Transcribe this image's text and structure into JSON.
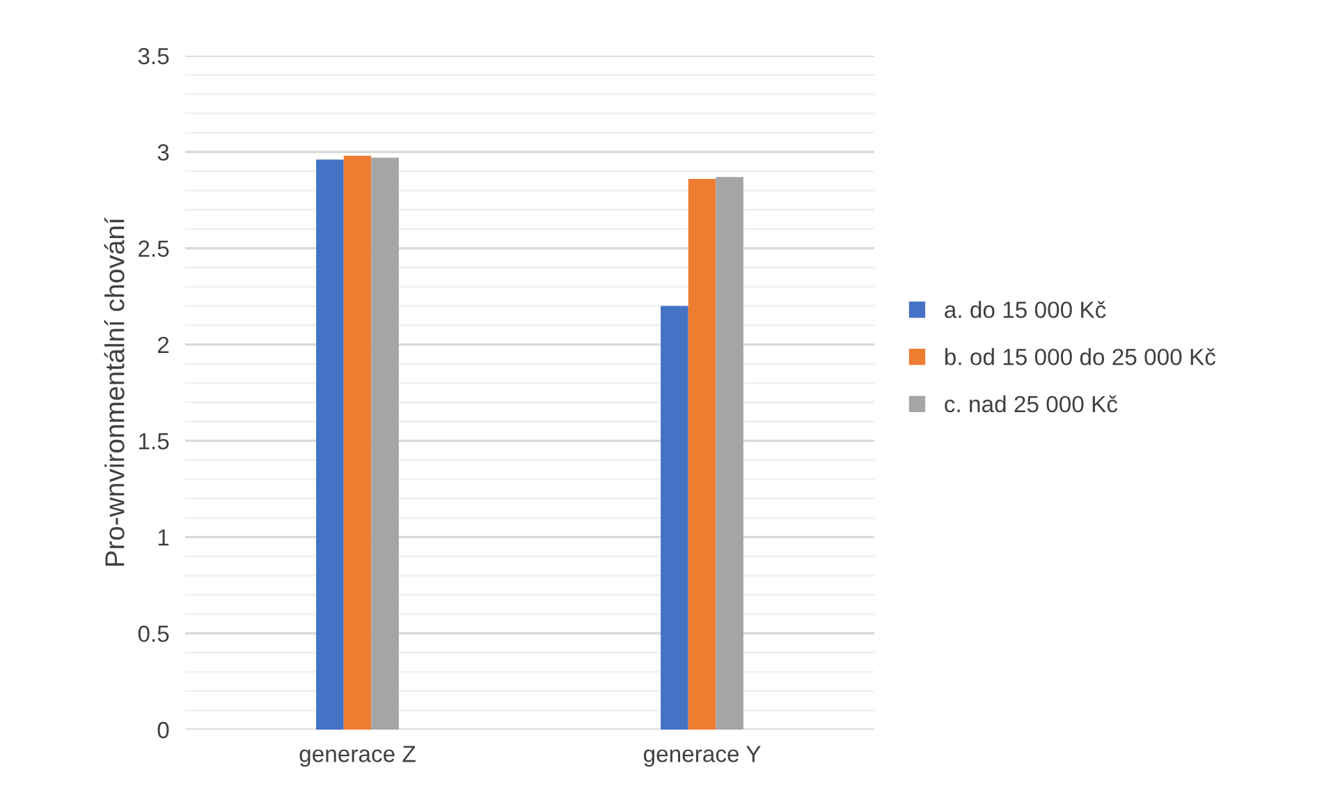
{
  "chart_data": {
    "type": "bar",
    "ylabel": "Pro-wnvironmentální chování",
    "categories": [
      "generace Z",
      "generace Y"
    ],
    "series": [
      {
        "name": "a. do 15 000 Kč",
        "color": "#4472c4",
        "values": [
          2.96,
          2.2
        ]
      },
      {
        "name": "b. od 15 000 do 25 000 Kč",
        "color": "#ed7d31",
        "values": [
          2.98,
          2.86
        ]
      },
      {
        "name": "c. nad 25 000 Kč",
        "color": "#a5a5a5",
        "values": [
          2.97,
          2.87
        ]
      }
    ],
    "ylim": [
      0,
      3.5
    ],
    "yticks": [
      0,
      0.5,
      1,
      1.5,
      2,
      2.5,
      3,
      3.5
    ],
    "grid": "y",
    "legend": "right"
  }
}
